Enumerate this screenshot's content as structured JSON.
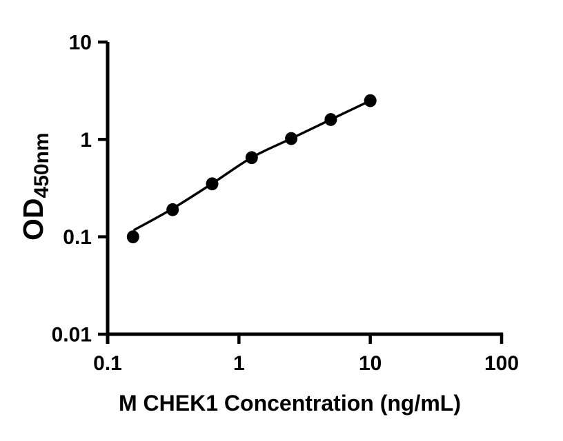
{
  "chart_data": {
    "type": "scatter",
    "title": "",
    "xlabel": "M CHEK1 Concentration (ng/mL)",
    "ylabel": "OD450nm",
    "ylabel_main": "OD",
    "ylabel_sub": "450nm",
    "x_scale": "log",
    "y_scale": "log",
    "xlim": [
      0.1,
      100
    ],
    "ylim": [
      0.01,
      10
    ],
    "grid": false,
    "legend_position": "none",
    "ink_color": "#000000",
    "background_color": "#ffffff",
    "x_ticks": [
      {
        "value": 0.1,
        "label": "0.1"
      },
      {
        "value": 1,
        "label": "1"
      },
      {
        "value": 10,
        "label": "10"
      },
      {
        "value": 100,
        "label": "100"
      }
    ],
    "y_ticks": [
      {
        "value": 0.01,
        "label": "0.01"
      },
      {
        "value": 0.1,
        "label": "0.1"
      },
      {
        "value": 1,
        "label": "1"
      },
      {
        "value": 10,
        "label": "10"
      }
    ],
    "series": [
      {
        "marker": "filled-circle",
        "color": "#000000",
        "points": [
          {
            "x": 0.156,
            "y": 0.1
          },
          {
            "x": 0.3125,
            "y": 0.19
          },
          {
            "x": 0.625,
            "y": 0.35
          },
          {
            "x": 1.25,
            "y": 0.65
          },
          {
            "x": 2.5,
            "y": 1.02
          },
          {
            "x": 5,
            "y": 1.6
          },
          {
            "x": 10,
            "y": 2.5
          }
        ]
      }
    ],
    "fit_curve": {
      "color": "#000000",
      "points": [
        {
          "x": 0.16,
          "y": 0.118
        },
        {
          "x": 0.3125,
          "y": 0.195
        },
        {
          "x": 0.625,
          "y": 0.352
        },
        {
          "x": 1.25,
          "y": 0.652
        },
        {
          "x": 2.5,
          "y": 1.02
        },
        {
          "x": 5,
          "y": 1.6
        },
        {
          "x": 10,
          "y": 2.5
        }
      ]
    }
  }
}
